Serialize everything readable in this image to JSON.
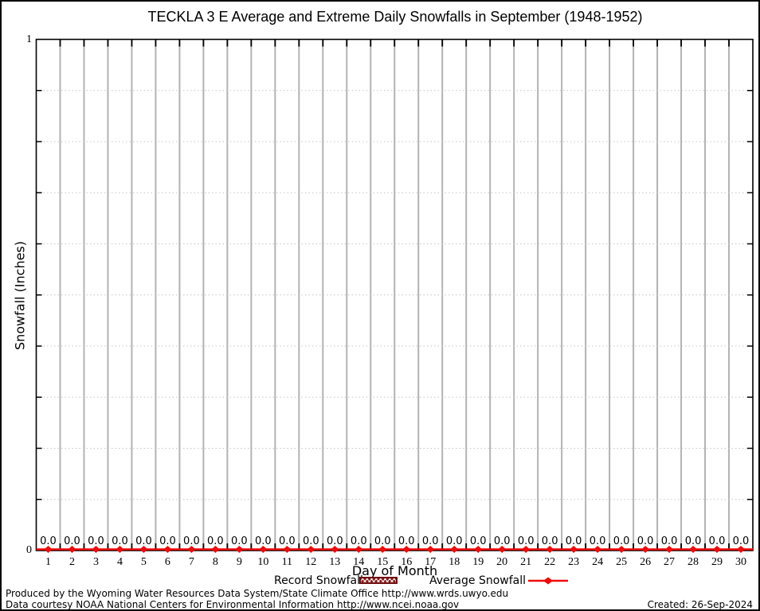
{
  "title": "TECKLA 3 E Average and Extreme Daily Snowfalls in September (1948-1952)",
  "chart_data": {
    "type": "bar+line",
    "title": "TECKLA 3 E Average and Extreme Daily Snowfalls in September (1948-1952)",
    "xlabel": "Day of Month",
    "ylabel": "Snowfall (Inches)",
    "ylim": [
      0,
      1
    ],
    "y_minor_step": 0.1,
    "grid": true,
    "legend_position": "bottom",
    "categories": [
      1,
      2,
      3,
      4,
      5,
      6,
      7,
      8,
      9,
      10,
      11,
      12,
      13,
      14,
      15,
      16,
      17,
      18,
      19,
      20,
      21,
      22,
      23,
      24,
      25,
      26,
      27,
      28,
      29,
      30
    ],
    "series": [
      {
        "name": "Record Snowfall",
        "type": "bar",
        "pattern": "crosshatch",
        "values": [
          0,
          0,
          0,
          0,
          0,
          0,
          0,
          0,
          0,
          0,
          0,
          0,
          0,
          0,
          0,
          0,
          0,
          0,
          0,
          0,
          0,
          0,
          0,
          0,
          0,
          0,
          0,
          0,
          0,
          0
        ]
      },
      {
        "name": "Average Snowfall",
        "type": "line",
        "marker": "diamond",
        "values": [
          0,
          0,
          0,
          0,
          0,
          0,
          0,
          0,
          0,
          0,
          0,
          0,
          0,
          0,
          0,
          0,
          0,
          0,
          0,
          0,
          0,
          0,
          0,
          0,
          0,
          0,
          0,
          0,
          0,
          0
        ]
      }
    ],
    "data_labels": [
      "0.0",
      "0.0",
      "0.0",
      "0.0",
      "0.0",
      "0.0",
      "0.0",
      "0.0",
      "0.0",
      "0.0",
      "0.0",
      "0.0",
      "0.0",
      "0.0",
      "0.0",
      "0.0",
      "0.0",
      "0.0",
      "0.0",
      "0.0",
      "0.0",
      "0.0",
      "0.0",
      "0.0",
      "0.0",
      "0.0",
      "0.0",
      "0.0",
      "0.0",
      "0.0"
    ]
  },
  "y_axis": {
    "top": "1",
    "bottom": "0"
  },
  "legend": {
    "record_label": "Record Snowfall",
    "average_label": "Average Snowfall"
  },
  "footer": {
    "producer": "Produced by the Wyoming Water Resources Data System/State Climate Office http://www.wrds.uwyo.edu",
    "courtesy": "Data courtesy NOAA National Centers for Environmental Information http://www.ncei.noaa.gov",
    "created": "Created: 26-Sep-2024"
  },
  "colors": {
    "average_red": "#f00a0a",
    "record_dark_red": "#8b1a1a",
    "grid_gray": "#b3b3b3",
    "dotted_gray": "#c6c6c6"
  }
}
